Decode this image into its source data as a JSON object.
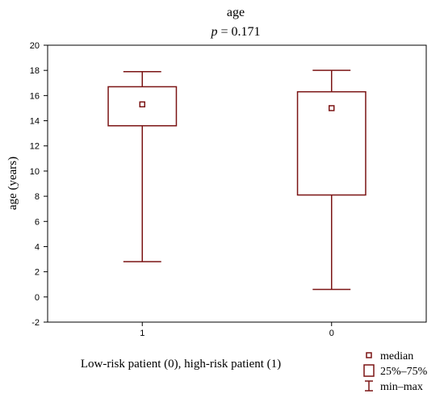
{
  "chart_data": {
    "type": "box",
    "title": "age",
    "subtitle_label": "p",
    "subtitle_value": " = 0.171",
    "ylabel": "age (years)",
    "xlabel": "Low-risk patient (0), high-risk patient (1)",
    "ylim": [
      -2,
      20
    ],
    "yticks": [
      -2,
      0,
      2,
      4,
      6,
      8,
      10,
      12,
      14,
      16,
      18,
      20
    ],
    "grid": false,
    "legend_position": "bottom-right",
    "categories": [
      "1",
      "0"
    ],
    "boxes": [
      {
        "category": "1",
        "min": 2.8,
        "q1": 13.6,
        "median": 15.3,
        "q3": 16.7,
        "max": 17.9
      },
      {
        "category": "0",
        "min": 0.6,
        "q1": 8.1,
        "median": 15.0,
        "q3": 16.3,
        "max": 18.0
      }
    ],
    "legend": [
      {
        "symbol": "median-marker",
        "label": "median"
      },
      {
        "symbol": "box",
        "label": "25%–75%"
      },
      {
        "symbol": "whisker",
        "label": "min–max"
      }
    ],
    "color": "#7b1414"
  }
}
